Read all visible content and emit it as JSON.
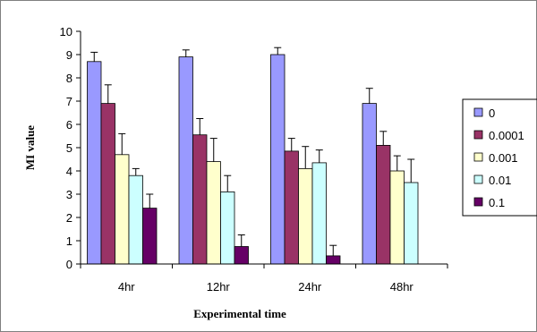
{
  "chart_data": {
    "type": "bar",
    "xlabel": "Experimental time",
    "ylabel": "MI value",
    "ylim": [
      0,
      10
    ],
    "yticks": [
      0,
      1,
      2,
      3,
      4,
      5,
      6,
      7,
      8,
      9,
      10
    ],
    "grid": false,
    "legend_position": "right",
    "categories": [
      "4hr",
      "12hr",
      "24hr",
      "48hr"
    ],
    "series": [
      {
        "name": "0",
        "color": "#9999FF",
        "values": [
          8.7,
          8.9,
          9.0,
          6.9
        ],
        "errors": [
          0.4,
          0.3,
          0.3,
          0.65
        ]
      },
      {
        "name": "0.0001",
        "color": "#993366",
        "values": [
          6.9,
          5.55,
          4.85,
          5.1
        ],
        "errors": [
          0.8,
          0.7,
          0.55,
          0.6
        ]
      },
      {
        "name": "0.001",
        "color": "#FFFFCC",
        "values": [
          4.7,
          4.4,
          4.1,
          4.0
        ],
        "errors": [
          0.9,
          1.0,
          0.95,
          0.65
        ]
      },
      {
        "name": "0.01",
        "color": "#CCFFFF",
        "values": [
          3.8,
          3.1,
          4.35,
          3.5
        ],
        "errors": [
          0.3,
          0.7,
          0.55,
          1.0
        ]
      },
      {
        "name": "0.1",
        "color": "#660066",
        "values": [
          2.4,
          0.75,
          0.35,
          null
        ],
        "errors": [
          0.6,
          0.5,
          0.45,
          null
        ]
      }
    ]
  }
}
